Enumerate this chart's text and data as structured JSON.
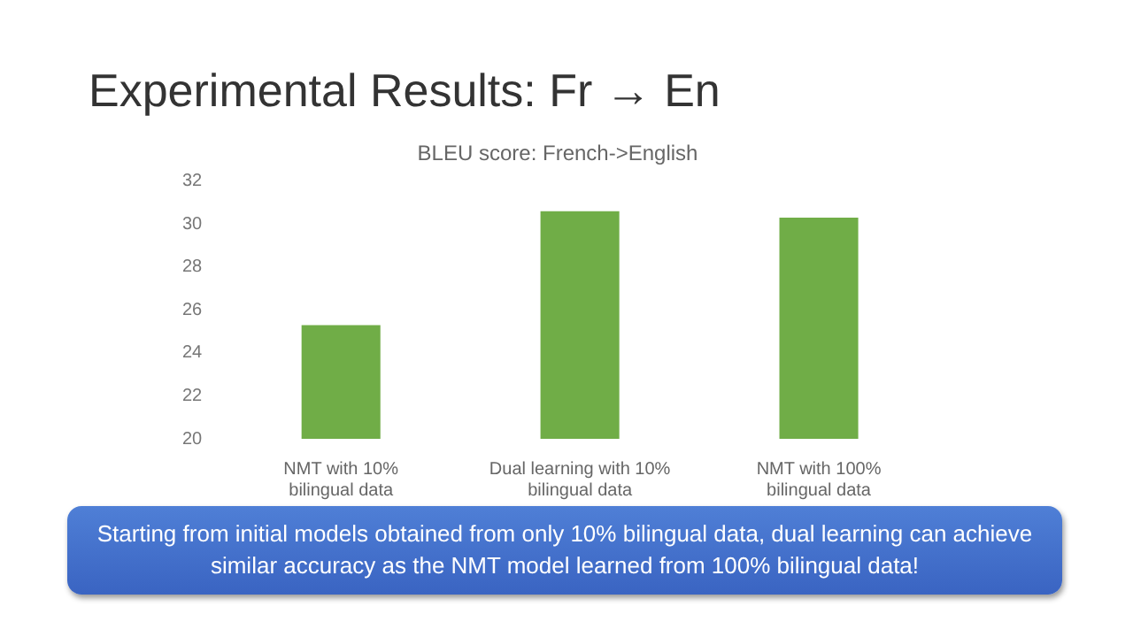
{
  "chart_data": {
    "type": "bar",
    "title": "Experimental Results: Fr → En",
    "subtitle": "BLEU score: French->English",
    "categories": [
      "NMT with 10% bilingual data",
      "Dual learning with 10% bilingual data",
      "NMT with 100% bilingual data"
    ],
    "values": [
      25.3,
      30.6,
      30.3
    ],
    "color": "#70ad47",
    "ylim": [
      20,
      32
    ],
    "yticks": [
      20,
      22,
      24,
      26,
      28,
      30,
      32
    ],
    "grid": false,
    "legend": false,
    "annotations": [
      "Starting from initial models obtained from only 10% bilingual data, dual learning can achieve similar accuracy as the NMT model learned from 100% bilingual data!"
    ]
  }
}
